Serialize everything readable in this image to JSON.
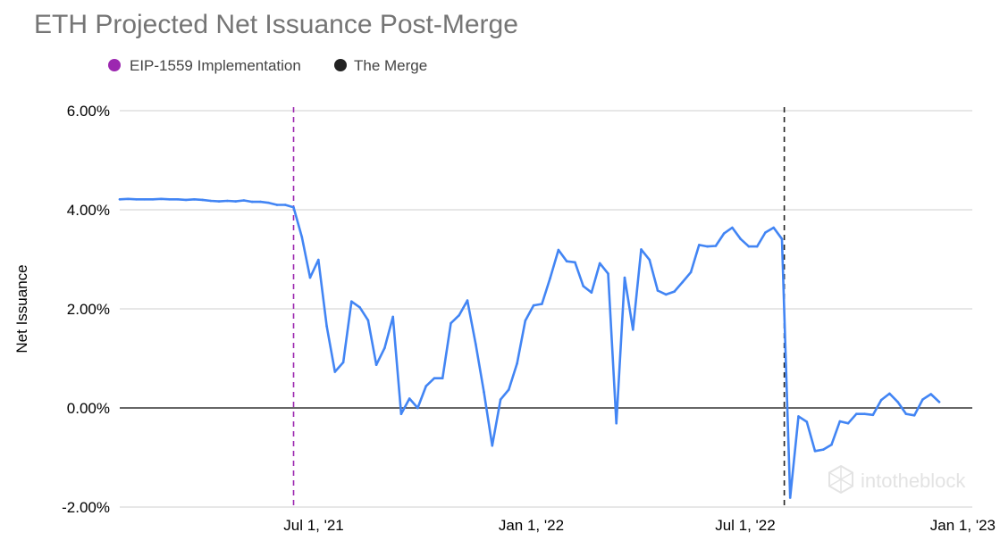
{
  "chart_data": {
    "type": "line",
    "title": "ETH Projected Net Issuance Post-Merge",
    "xlabel": "",
    "ylabel": "Net Issuance",
    "ylim": [
      -2,
      6
    ],
    "yticks": [
      {
        "value": -2,
        "label": "-2.00%"
      },
      {
        "value": 0,
        "label": "0.00%"
      },
      {
        "value": 2,
        "label": "2.00%"
      },
      {
        "value": 4,
        "label": "4.00%"
      },
      {
        "value": 6,
        "label": "6.00%"
      }
    ],
    "xlim": [
      "2021-01-18",
      "2023-01-09"
    ],
    "xticks": [
      {
        "value": "2021-07-01",
        "label": "Jul 1, '21"
      },
      {
        "value": "2022-01-01",
        "label": "Jan 1, '22"
      },
      {
        "value": "2022-07-01",
        "label": "Jul 1, '22"
      },
      {
        "value": "2023-01-01",
        "label": "Jan 1, '23"
      }
    ],
    "grid": true,
    "legend_position": "top-left",
    "series": [
      {
        "color": "#4285f4",
        "points": [
          [
            "2021-01-18",
            4.21
          ],
          [
            "2021-01-25",
            4.22
          ],
          [
            "2021-02-01",
            4.21
          ],
          [
            "2021-02-08",
            4.21
          ],
          [
            "2021-02-15",
            4.21
          ],
          [
            "2021-02-22",
            4.22
          ],
          [
            "2021-03-01",
            4.21
          ],
          [
            "2021-03-08",
            4.21
          ],
          [
            "2021-03-15",
            4.2
          ],
          [
            "2021-03-22",
            4.21
          ],
          [
            "2021-03-29",
            4.2
          ],
          [
            "2021-04-05",
            4.18
          ],
          [
            "2021-04-12",
            4.17
          ],
          [
            "2021-04-19",
            4.18
          ],
          [
            "2021-04-26",
            4.17
          ],
          [
            "2021-05-03",
            4.19
          ],
          [
            "2021-05-10",
            4.16
          ],
          [
            "2021-05-17",
            4.16
          ],
          [
            "2021-05-24",
            4.14
          ],
          [
            "2021-05-31",
            4.1
          ],
          [
            "2021-06-07",
            4.1
          ],
          [
            "2021-06-14",
            4.05
          ],
          [
            "2021-06-21",
            3.45
          ],
          [
            "2021-06-28",
            2.63
          ],
          [
            "2021-07-05",
            2.99
          ],
          [
            "2021-07-12",
            1.65
          ],
          [
            "2021-07-19",
            0.73
          ],
          [
            "2021-07-26",
            0.92
          ],
          [
            "2021-08-02",
            2.15
          ],
          [
            "2021-08-09",
            2.03
          ],
          [
            "2021-08-16",
            1.77
          ],
          [
            "2021-08-23",
            0.87
          ],
          [
            "2021-08-30",
            1.21
          ],
          [
            "2021-09-06",
            1.84
          ],
          [
            "2021-09-13",
            -0.12
          ],
          [
            "2021-09-20",
            0.19
          ],
          [
            "2021-09-27",
            0.0
          ],
          [
            "2021-10-04",
            0.44
          ],
          [
            "2021-10-11",
            0.6
          ],
          [
            "2021-10-18",
            0.6
          ],
          [
            "2021-10-25",
            1.71
          ],
          [
            "2021-11-01",
            1.87
          ],
          [
            "2021-11-08",
            2.17
          ],
          [
            "2021-11-15",
            1.29
          ],
          [
            "2021-11-22",
            0.32
          ],
          [
            "2021-11-29",
            -0.76
          ],
          [
            "2021-12-06",
            0.17
          ],
          [
            "2021-12-13",
            0.37
          ],
          [
            "2021-12-20",
            0.9
          ],
          [
            "2021-12-27",
            1.76
          ],
          [
            "2022-01-03",
            2.07
          ],
          [
            "2022-01-10",
            2.1
          ],
          [
            "2022-01-17",
            2.62
          ],
          [
            "2022-01-24",
            3.19
          ],
          [
            "2022-01-31",
            2.96
          ],
          [
            "2022-02-07",
            2.94
          ],
          [
            "2022-02-14",
            2.46
          ],
          [
            "2022-02-21",
            2.33
          ],
          [
            "2022-02-28",
            2.92
          ],
          [
            "2022-03-07",
            2.71
          ],
          [
            "2022-03-14",
            -0.31
          ],
          [
            "2022-03-21",
            2.63
          ],
          [
            "2022-03-28",
            1.58
          ],
          [
            "2022-04-04",
            3.2
          ],
          [
            "2022-04-11",
            2.99
          ],
          [
            "2022-04-18",
            2.37
          ],
          [
            "2022-04-25",
            2.29
          ],
          [
            "2022-05-02",
            2.35
          ],
          [
            "2022-05-09",
            2.54
          ],
          [
            "2022-05-16",
            2.74
          ],
          [
            "2022-05-23",
            3.29
          ],
          [
            "2022-05-30",
            3.26
          ],
          [
            "2022-06-06",
            3.27
          ],
          [
            "2022-06-13",
            3.52
          ],
          [
            "2022-06-20",
            3.64
          ],
          [
            "2022-06-27",
            3.41
          ],
          [
            "2022-07-04",
            3.26
          ],
          [
            "2022-07-11",
            3.26
          ],
          [
            "2022-07-18",
            3.54
          ],
          [
            "2022-07-25",
            3.64
          ],
          [
            "2022-08-01",
            3.41
          ],
          [
            "2022-08-08",
            -1.81
          ],
          [
            "2022-08-15",
            -0.17
          ],
          [
            "2022-08-22",
            -0.28
          ],
          [
            "2022-08-29",
            -0.87
          ],
          [
            "2022-09-05",
            -0.84
          ],
          [
            "2022-09-12",
            -0.74
          ],
          [
            "2022-09-19",
            -0.27
          ],
          [
            "2022-09-26",
            -0.31
          ],
          [
            "2022-10-03",
            -0.12
          ],
          [
            "2022-10-10",
            -0.12
          ],
          [
            "2022-10-17",
            -0.14
          ],
          [
            "2022-10-24",
            0.16
          ],
          [
            "2022-10-31",
            0.29
          ],
          [
            "2022-11-07",
            0.12
          ],
          [
            "2022-11-14",
            -0.12
          ],
          [
            "2022-11-21",
            -0.15
          ],
          [
            "2022-11-28",
            0.17
          ],
          [
            "2022-12-05",
            0.28
          ],
          [
            "2022-12-12",
            0.12
          ]
        ]
      }
    ],
    "events": [
      {
        "name": "EIP-1559 Implementation",
        "date": "2021-06-14",
        "color": "#9c27b0"
      },
      {
        "name": "The Merge",
        "date": "2022-08-03",
        "color": "#222222"
      }
    ]
  },
  "watermark": {
    "text": "intotheblock"
  }
}
